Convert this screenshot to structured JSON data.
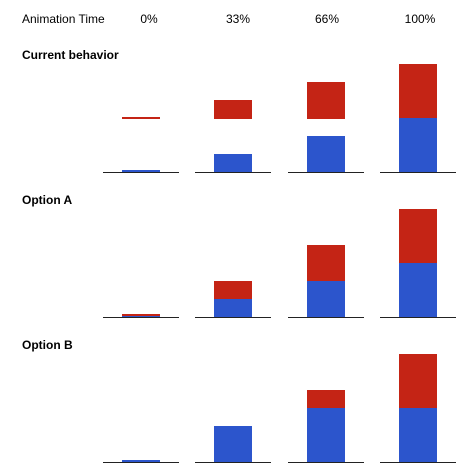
{
  "header": {
    "row_label": "Animation Time",
    "times": [
      "0%",
      "33%",
      "66%",
      "100%"
    ]
  },
  "colors": {
    "top_segment": "#c42415",
    "bottom_segment": "#2c55cc",
    "baseline": "#222222"
  },
  "chart_data": {
    "type": "bar",
    "categories": [
      "0%",
      "33%",
      "66%",
      "100%"
    ],
    "ylim": [
      0,
      110
    ],
    "panels": [
      {
        "title": "Current behavior",
        "bars": [
          {
            "bottom": [
              0,
              1
            ],
            "top": [
              53,
              55
            ]
          },
          {
            "bottom": [
              0,
              18
            ],
            "top": [
              53,
              72
            ]
          },
          {
            "bottom": [
              0,
              36
            ],
            "top": [
              53,
              90
            ]
          },
          {
            "bottom": [
              0,
              54
            ],
            "top": [
              54,
              108
            ]
          }
        ]
      },
      {
        "title": "Option A",
        "bars": [
          {
            "bottom": [
              0,
              1
            ],
            "top": [
              1,
              2
            ]
          },
          {
            "bottom": [
              0,
              18
            ],
            "top": [
              18,
              36
            ]
          },
          {
            "bottom": [
              0,
              36
            ],
            "top": [
              36,
              72
            ]
          },
          {
            "bottom": [
              0,
              54
            ],
            "top": [
              54,
              108
            ]
          }
        ]
      },
      {
        "title": "Option B",
        "bars": [
          {
            "bottom": [
              0,
              1
            ],
            "top": [
              1,
              1
            ]
          },
          {
            "bottom": [
              0,
              36
            ],
            "top": [
              36,
              36
            ]
          },
          {
            "bottom": [
              0,
              54
            ],
            "top": [
              54,
              72
            ]
          },
          {
            "bottom": [
              0,
              54
            ],
            "top": [
              54,
              108
            ]
          }
        ]
      }
    ]
  }
}
